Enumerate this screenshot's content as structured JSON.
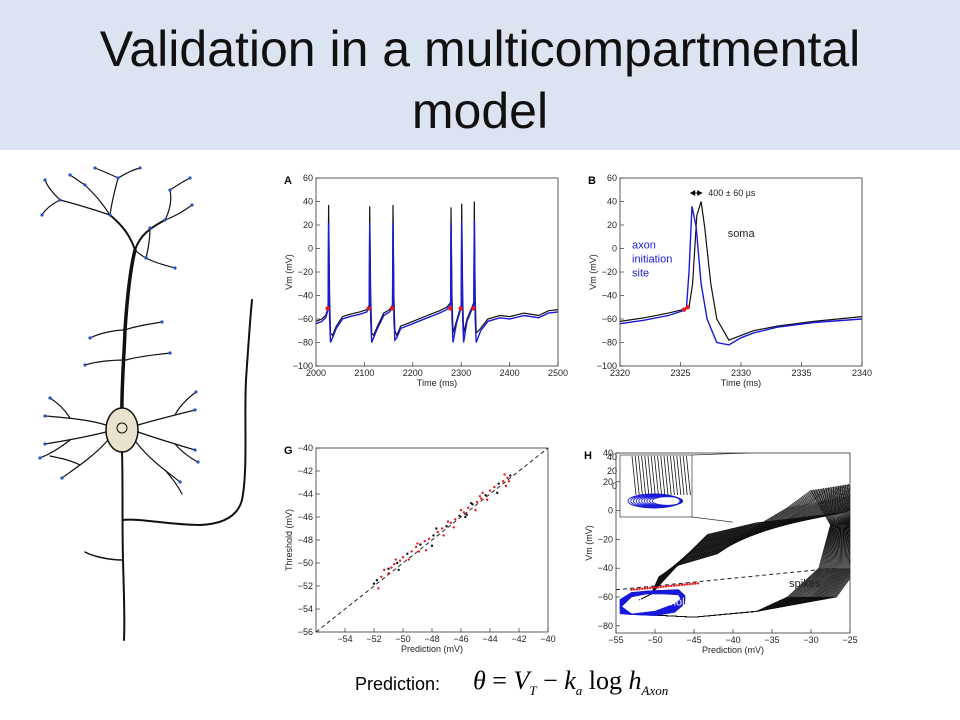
{
  "title": {
    "line1": "Validation in a multicompartmental",
    "line2": "model"
  },
  "prediction": {
    "label": "Prediction:",
    "formula": {
      "theta": "θ",
      "eq": " = ",
      "vt": "V",
      "vt_sub": "T",
      "minus": " − ",
      "k": "k",
      "k_sub": "a",
      "log": " log ",
      "h": "h",
      "h_sub": "Axon"
    }
  },
  "colors": {
    "soma": "#111111",
    "axon": "#1a1adb",
    "marker": "#e8191e",
    "title_band": "#dbe4f0"
  },
  "chart_data": [
    {
      "panel": "A",
      "type": "line",
      "xlabel": "Time (ms)",
      "ylabel": "Vm (mV)",
      "xlim": [
        2000,
        2500
      ],
      "ylim": [
        -100,
        60
      ],
      "xticks": [
        2000,
        2100,
        2200,
        2300,
        2400,
        2500
      ],
      "yticks": [
        60,
        40,
        20,
        0,
        -20,
        -40,
        -60,
        -80,
        -100
      ],
      "spike_times": [
        2025,
        2110,
        2158,
        2278,
        2300,
        2326
      ],
      "series": [
        {
          "color": "black",
          "x": [
            2000,
            2012,
            2020,
            2025,
            2026,
            2028,
            2030,
            2034,
            2042,
            2055,
            2070,
            2090,
            2105,
            2110,
            2111,
            2113,
            2115,
            2119,
            2127,
            2140,
            2152,
            2158,
            2159,
            2161,
            2163,
            2167,
            2175,
            2200,
            2230,
            2255,
            2270,
            2278,
            2279,
            2281,
            2283,
            2290,
            2300,
            2301,
            2303,
            2305,
            2312,
            2326,
            2327,
            2329,
            2331,
            2340,
            2355,
            2380,
            2400,
            2430,
            2460,
            2480,
            2500
          ],
          "y": [
            -62,
            -60,
            -57,
            -50,
            37,
            -40,
            -72,
            -74,
            -66,
            -58,
            -56,
            -54,
            -52,
            -48,
            36,
            -40,
            -72,
            -74,
            -66,
            -55,
            -52,
            -48,
            37,
            -40,
            -70,
            -74,
            -66,
            -62,
            -57,
            -53,
            -50,
            -46,
            35,
            -40,
            -72,
            -62,
            -48,
            38,
            -40,
            -72,
            -60,
            -46,
            40,
            -40,
            -72,
            -68,
            -60,
            -57,
            -58,
            -55,
            -57,
            -53,
            -52
          ]
        },
        {
          "color": "blue",
          "x": [
            2000,
            2012,
            2020,
            2025,
            2026,
            2028,
            2030,
            2034,
            2042,
            2055,
            2070,
            2090,
            2105,
            2110,
            2111,
            2113,
            2115,
            2119,
            2127,
            2140,
            2152,
            2158,
            2159,
            2161,
            2163,
            2167,
            2175,
            2200,
            2230,
            2255,
            2270,
            2278,
            2279,
            2281,
            2283,
            2290,
            2300,
            2301,
            2303,
            2305,
            2312,
            2326,
            2327,
            2329,
            2331,
            2340,
            2355,
            2380,
            2400,
            2430,
            2460,
            2480,
            2500
          ],
          "y": [
            -64,
            -62,
            -59,
            -52,
            22,
            -60,
            -80,
            -76,
            -68,
            -60,
            -58,
            -56,
            -54,
            -50,
            22,
            -60,
            -80,
            -76,
            -68,
            -57,
            -54,
            -50,
            23,
            -60,
            -78,
            -76,
            -68,
            -64,
            -59,
            -55,
            -52,
            -48,
            22,
            -60,
            -80,
            -64,
            -50,
            24,
            -60,
            -80,
            -62,
            -48,
            25,
            -60,
            -80,
            -70,
            -62,
            -59,
            -60,
            -57,
            -59,
            -55,
            -54
          ]
        }
      ]
    },
    {
      "panel": "B",
      "type": "line",
      "xlabel": "Time (ms)",
      "ylabel": "Vm (mV)",
      "xlim": [
        2320,
        2340
      ],
      "ylim": [
        -100,
        60
      ],
      "xticks": [
        2320,
        2325,
        2330,
        2335,
        2340
      ],
      "yticks": [
        60,
        40,
        20,
        0,
        -20,
        -40,
        -60,
        -80,
        -100
      ],
      "annotation": "400 ± 60 µs",
      "labels": {
        "soma": "soma",
        "axon": [
          "axon",
          "initiation",
          "site"
        ]
      },
      "series": [
        {
          "name": "soma",
          "color": "black",
          "x": [
            2320,
            2322,
            2324,
            2325.2,
            2325.7,
            2326.0,
            2326.35,
            2326.7,
            2327.0,
            2327.5,
            2328,
            2329,
            2330,
            2331,
            2333,
            2336,
            2340
          ],
          "y": [
            -62,
            -59,
            -55,
            -52,
            -50,
            -30,
            28,
            40,
            18,
            -30,
            -60,
            -78,
            -74,
            -70,
            -66,
            -62,
            -58
          ]
        },
        {
          "name": "axon initiation site",
          "color": "blue",
          "x": [
            2320,
            2322,
            2324,
            2325.2,
            2325.5,
            2325.7,
            2325.95,
            2326.3,
            2326.7,
            2327.2,
            2328,
            2329,
            2330,
            2331,
            2333,
            2336,
            2340
          ],
          "y": [
            -64,
            -61,
            -57,
            -53,
            -50,
            -20,
            36,
            18,
            -30,
            -60,
            -80,
            -82,
            -76,
            -72,
            -67,
            -63,
            -60
          ]
        }
      ]
    },
    {
      "panel": "G",
      "type": "scatter",
      "xlabel": "Prediction (mV)",
      "ylabel": "Threshold (mV)",
      "xlim": [
        -56,
        -40
      ],
      "ylim": [
        -56,
        -40
      ],
      "xticks": [
        -54,
        -52,
        -50,
        -48,
        -46,
        -44,
        -42,
        -40
      ],
      "yticks": [
        -40,
        -42,
        -44,
        -46,
        -48,
        -50,
        -52,
        -54,
        -56
      ],
      "identity_line": true,
      "points": [
        [
          -51.8,
          -51.5
        ],
        [
          -51.5,
          -51.2
        ],
        [
          -51.3,
          -50.6
        ],
        [
          -51.0,
          -50.5
        ],
        [
          -50.8,
          -50.4
        ],
        [
          -50.6,
          -50.1
        ],
        [
          -50.4,
          -50.0
        ],
        [
          -50.2,
          -49.8
        ],
        [
          -50.0,
          -49.5
        ],
        [
          -49.7,
          -49.2
        ],
        [
          -49.4,
          -49.0
        ],
        [
          -49.1,
          -48.6
        ],
        [
          -48.8,
          -48.4
        ],
        [
          -48.5,
          -48.1
        ],
        [
          -48.2,
          -47.9
        ],
        [
          -47.9,
          -47.6
        ],
        [
          -47.6,
          -47.3
        ],
        [
          -47.3,
          -47.0
        ],
        [
          -47.0,
          -46.8
        ],
        [
          -46.7,
          -46.5
        ],
        [
          -46.4,
          -46.2
        ],
        [
          -46.1,
          -45.9
        ],
        [
          -45.8,
          -45.6
        ],
        [
          -45.5,
          -45.2
        ],
        [
          -45.2,
          -44.9
        ],
        [
          -44.9,
          -44.7
        ],
        [
          -44.6,
          -44.4
        ],
        [
          -44.3,
          -44.1
        ],
        [
          -44.0,
          -43.7
        ],
        [
          -43.7,
          -43.4
        ],
        [
          -43.4,
          -43.1
        ],
        [
          -43.1,
          -42.9
        ],
        [
          -42.8,
          -42.6
        ],
        [
          -42.6,
          -42.4
        ],
        [
          -51.7,
          -52.2
        ],
        [
          -51.0,
          -50.9
        ],
        [
          -50.3,
          -50.6
        ],
        [
          -49.6,
          -49.7
        ],
        [
          -48.9,
          -49.0
        ],
        [
          -48.0,
          -48.5
        ],
        [
          -47.2,
          -47.6
        ],
        [
          -46.5,
          -46.9
        ],
        [
          -45.7,
          -46.0
        ],
        [
          -45.0,
          -45.4
        ],
        [
          -44.2,
          -44.5
        ],
        [
          -43.5,
          -43.9
        ],
        [
          -42.9,
          -43.3
        ],
        [
          -46.0,
          -45.4
        ],
        [
          -45.3,
          -44.8
        ],
        [
          -49.0,
          -48.3
        ],
        [
          -50.5,
          -49.7
        ],
        [
          -47.7,
          -47.0
        ],
        [
          -44.5,
          -43.9
        ],
        [
          -43.0,
          -42.3
        ],
        [
          -52.0,
          -51.8
        ],
        [
          -48.4,
          -48.9
        ],
        [
          -46.9,
          -46.4
        ],
        [
          -45.6,
          -45.8
        ],
        [
          -44.7,
          -44.2
        ],
        [
          -42.7,
          -42.9
        ]
      ]
    },
    {
      "panel": "H",
      "type": "line",
      "xlabel": "Prediction (mV)",
      "ylabel": "Vm (mV)",
      "xlim": [
        -55,
        -25
      ],
      "ylim": [
        -85,
        40
      ],
      "xticks": [
        -55,
        -50,
        -45,
        -40,
        -35,
        -30,
        -25
      ],
      "yticks": [
        40,
        20,
        0,
        -20,
        -40,
        -60,
        -80
      ],
      "labels": {
        "spikes": "spikes",
        "subthreshold": "subthreshold"
      }
    }
  ]
}
